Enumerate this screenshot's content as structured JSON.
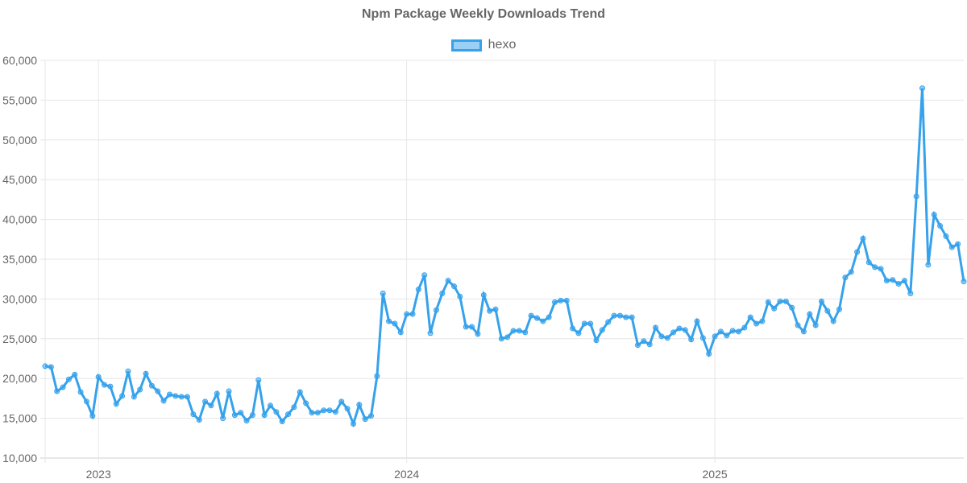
{
  "chart_data": {
    "type": "line",
    "title": "Npm Package Weekly Downloads Trend",
    "xlabel": "",
    "ylabel": "",
    "ylim": [
      10000,
      60000
    ],
    "yticks": [
      "10,000",
      "15,000",
      "20,000",
      "25,000",
      "30,000",
      "35,000",
      "40,000",
      "45,000",
      "50,000",
      "55,000",
      "60,000"
    ],
    "xticks": [
      {
        "label": "2023",
        "index": 9
      },
      {
        "label": "2024",
        "index": 61
      },
      {
        "label": "2025",
        "index": 113
      }
    ],
    "grid": true,
    "legend_position": "top",
    "series": [
      {
        "name": "hexo",
        "color": "#36a2eb",
        "fill": "rgba(54,162,235,0.5)",
        "values": [
          21550,
          21450,
          18400,
          18900,
          19900,
          20500,
          18300,
          17100,
          15300,
          20200,
          19200,
          19000,
          16800,
          17800,
          20900,
          17700,
          18600,
          20600,
          19100,
          18400,
          17200,
          18000,
          17800,
          17700,
          17700,
          15500,
          14800,
          17100,
          16600,
          18100,
          15000,
          18400,
          15400,
          15700,
          14700,
          15400,
          19800,
          15400,
          16600,
          15800,
          14600,
          15500,
          16400,
          18300,
          16900,
          15700,
          15700,
          16000,
          16000,
          15800,
          17100,
          16200,
          14300,
          16700,
          14900,
          15300,
          20300,
          30700,
          27200,
          26900,
          25800,
          28100,
          28100,
          31200,
          33000,
          25700,
          28600,
          30700,
          32300,
          31600,
          30300,
          26500,
          26500,
          25600,
          30500,
          28500,
          28700,
          25000,
          25200,
          26000,
          26000,
          25800,
          27900,
          27600,
          27200,
          27700,
          29600,
          29800,
          29800,
          26300,
          25700,
          26900,
          26900,
          24800,
          26100,
          27100,
          27900,
          27900,
          27700,
          27700,
          24200,
          24700,
          24300,
          26400,
          25300,
          25100,
          25800,
          26300,
          26100,
          24900,
          27200,
          25100,
          23100,
          25300,
          25900,
          25400,
          26000,
          25900,
          26400,
          27700,
          26900,
          27200,
          29600,
          28800,
          29700,
          29700,
          28900,
          26700,
          25900,
          28100,
          26700,
          29700,
          28500,
          27200,
          28700,
          32700,
          33400,
          35900,
          37600,
          34600,
          34000,
          33800,
          32300,
          32400,
          31900,
          32300,
          30700,
          42900,
          56500,
          34300,
          40600,
          39200,
          37900,
          36500,
          36900,
          32200
        ]
      }
    ]
  },
  "header": {
    "title": "Npm Package Weekly Downloads Trend"
  },
  "legend": {
    "items": [
      {
        "label": "hexo",
        "color": "#36a2eb"
      }
    ]
  }
}
